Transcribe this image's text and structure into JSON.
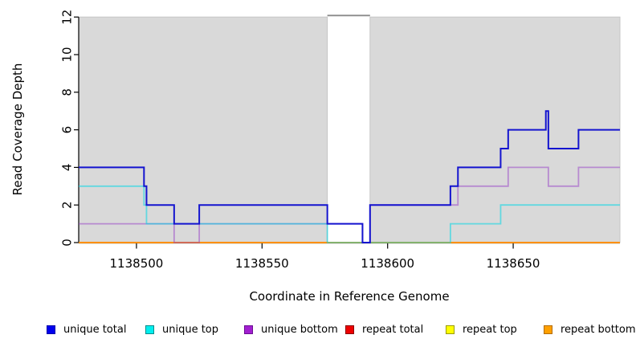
{
  "chart_data": {
    "type": "line",
    "subtype": "step-coverage-plot",
    "title": "",
    "xlabel": "Coordinate in Reference Genome",
    "ylabel": "Read Coverage Depth",
    "xlim": [
      1138477,
      1138692.5
    ],
    "ylim": [
      0,
      12
    ],
    "x_ticks": [
      1138500,
      1138550,
      1138600,
      1138650
    ],
    "y_ticks": [
      0,
      2,
      4,
      6,
      8,
      10,
      12
    ],
    "grid": false,
    "legend_position": "bottom",
    "plot_bg": "#ffffff",
    "region_fill": "#d9d9d9",
    "region_border": "#c6c6c6",
    "gap_line_color": "#8a8a8a",
    "background_regions": [
      {
        "x0": 1138477,
        "x1": 1138576
      },
      {
        "x0": 1138593,
        "x1": 1138692.5
      }
    ],
    "gap_top_line": {
      "x0": 1138576,
      "x1": 1138593,
      "y": 12.1
    },
    "series": [
      {
        "name": "repeat total",
        "color": "#dd0000",
        "width": 1.6,
        "points": [
          [
            1138477,
            0
          ]
        ]
      },
      {
        "name": "repeat top",
        "color": "#ffff00",
        "width": 1.6,
        "points": [
          [
            1138477,
            0
          ]
        ]
      },
      {
        "name": "repeat bottom",
        "color": "#ff9000",
        "width": 2,
        "points": [
          [
            1138477,
            0
          ]
        ]
      },
      {
        "name": "unique bottom",
        "color": "rgba(150,60,200,0.5)",
        "width": 1.8,
        "points": [
          [
            1138477,
            1
          ],
          [
            1138515,
            0
          ],
          [
            1138525,
            1
          ],
          [
            1138590,
            0
          ],
          [
            1138593,
            2
          ],
          [
            1138628,
            3
          ],
          [
            1138648,
            4
          ],
          [
            1138664,
            3
          ],
          [
            1138676,
            4
          ]
        ]
      },
      {
        "name": "unique top",
        "color": "rgba(0,215,230,0.55)",
        "width": 1.8,
        "points": [
          [
            1138477,
            3
          ],
          [
            1138503,
            2
          ],
          [
            1138504,
            1
          ],
          [
            1138576,
            0
          ],
          [
            1138625,
            1
          ],
          [
            1138645,
            2
          ]
        ]
      },
      {
        "name": "unique total",
        "color": "#1414cf",
        "width": 2,
        "points": [
          [
            1138477,
            4
          ],
          [
            1138503,
            3
          ],
          [
            1138504,
            2
          ],
          [
            1138515,
            1
          ],
          [
            1138525,
            2
          ],
          [
            1138576,
            1
          ],
          [
            1138590,
            0
          ],
          [
            1138593,
            2
          ],
          [
            1138625,
            3
          ],
          [
            1138628,
            4
          ],
          [
            1138645,
            5
          ],
          [
            1138648,
            6
          ],
          [
            1138663,
            7
          ],
          [
            1138664,
            5
          ],
          [
            1138676,
            6
          ]
        ]
      }
    ],
    "legend": [
      {
        "label": "unique total",
        "fill": "#0000ee",
        "border": "#0000aa"
      },
      {
        "label": "unique top",
        "fill": "#00eeee",
        "border": "#008b8b"
      },
      {
        "label": "unique bottom",
        "fill": "#a21fd0",
        "border": "#6a0e92"
      },
      {
        "label": "repeat total",
        "fill": "#ee0000",
        "border": "#8b0000"
      },
      {
        "label": "repeat top",
        "fill": "#ffff00",
        "border": "#9a9a00"
      },
      {
        "label": "repeat bottom",
        "fill": "#ffa000",
        "border": "#b36b00"
      }
    ]
  }
}
